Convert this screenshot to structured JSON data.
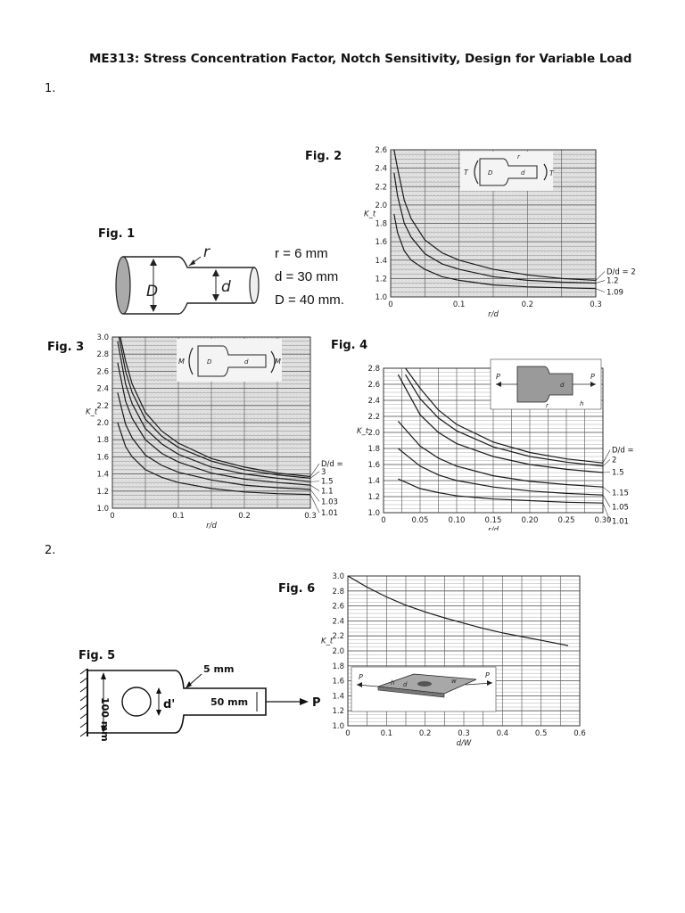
{
  "title": "ME313: Stress Concentration Factor, Notch Sensitivity, Design for Variable Load",
  "questions": [
    "1.",
    "2."
  ],
  "figures": {
    "fig1": {
      "label": "Fig. 1",
      "params": [
        "r = 6 mm",
        "d = 30 mm",
        "D = 40 mm."
      ],
      "sketch_labels": {
        "r": "r",
        "D": "D",
        "d": "d"
      }
    },
    "fig2": {
      "label": "Fig. 2",
      "insert_labels": {
        "T": "T",
        "r": "r",
        "D": "D",
        "d": "d"
      }
    },
    "fig3": {
      "label": "Fig. 3",
      "insert_labels": {
        "M": "M",
        "D": "D",
        "d": "d"
      }
    },
    "fig4": {
      "label": "Fig. 4",
      "insert_labels": {
        "P": "P",
        "d": "d",
        "h": "h",
        "r": "r"
      }
    },
    "fig5": {
      "label": "Fig. 5",
      "labels": {
        "width": "100 mm",
        "notch": "5 mm",
        "hole": "d'",
        "narrow": "50 mm",
        "load": "P"
      }
    },
    "fig6": {
      "label": "Fig. 6",
      "insert_labels": {
        "P": "P",
        "d": "d",
        "h": "h",
        "w": "w"
      }
    }
  },
  "chart_data": [
    {
      "id": "fig2",
      "type": "line",
      "xlabel": "r/d",
      "ylabel": "K_t",
      "xlim": [
        0,
        0.3
      ],
      "ylim": [
        1.0,
        2.6
      ],
      "xticks": [
        0,
        0.1,
        0.2,
        0.3
      ],
      "xtick_labels": [
        "0",
        "0.1",
        "0.2",
        "0.3"
      ],
      "yticks": [
        1.0,
        1.2,
        1.4,
        1.6,
        1.8,
        2.0,
        2.2,
        2.4,
        2.6
      ],
      "ytick_labels": [
        "1.0",
        "1.2",
        "1.4",
        "1.6",
        "1.8",
        "2.0",
        "2.2",
        "2.4",
        "2.6"
      ],
      "grid": true,
      "series": [
        {
          "name": "D/d = 2",
          "x": [
            0.005,
            0.01,
            0.02,
            0.03,
            0.05,
            0.075,
            0.1,
            0.15,
            0.2,
            0.25,
            0.3
          ],
          "y": [
            2.65,
            2.4,
            2.05,
            1.85,
            1.62,
            1.48,
            1.4,
            1.3,
            1.24,
            1.2,
            1.18
          ]
        },
        {
          "name": "1.2",
          "x": [
            0.005,
            0.01,
            0.02,
            0.03,
            0.05,
            0.075,
            0.1,
            0.15,
            0.2,
            0.25,
            0.3
          ],
          "y": [
            2.35,
            2.1,
            1.8,
            1.65,
            1.47,
            1.36,
            1.3,
            1.22,
            1.18,
            1.16,
            1.15
          ]
        },
        {
          "name": "1.09",
          "x": [
            0.005,
            0.01,
            0.02,
            0.03,
            0.05,
            0.075,
            0.1,
            0.15,
            0.2,
            0.25,
            0.3
          ],
          "y": [
            1.9,
            1.7,
            1.5,
            1.4,
            1.3,
            1.22,
            1.18,
            1.13,
            1.11,
            1.1,
            1.09
          ]
        }
      ]
    },
    {
      "id": "fig3",
      "type": "line",
      "xlabel": "r/d",
      "ylabel": "K_t",
      "xlim": [
        0,
        0.3
      ],
      "ylim": [
        1.0,
        3.0
      ],
      "xticks": [
        0,
        0.1,
        0.2,
        0.3
      ],
      "xtick_labels": [
        "0",
        "0.1",
        "0.2",
        "0.3"
      ],
      "yticks": [
        1.0,
        1.2,
        1.4,
        1.6,
        1.8,
        2.0,
        2.2,
        2.4,
        2.6,
        2.8,
        3.0
      ],
      "ytick_labels": [
        "1.0",
        "1.2",
        "1.4",
        "1.6",
        "1.8",
        "2.0",
        "2.2",
        "2.4",
        "2.6",
        "2.8",
        "3.0"
      ],
      "grid": true,
      "series": [
        {
          "name": "D/d = 6",
          "x": [
            0.012,
            0.02,
            0.03,
            0.05,
            0.075,
            0.1,
            0.15,
            0.2,
            0.25,
            0.3
          ],
          "y": [
            3.0,
            2.72,
            2.45,
            2.12,
            1.9,
            1.76,
            1.58,
            1.48,
            1.41,
            1.37
          ]
        },
        {
          "name": "3",
          "x": [
            0.01,
            0.02,
            0.03,
            0.05,
            0.075,
            0.1,
            0.15,
            0.2,
            0.25,
            0.3
          ],
          "y": [
            3.0,
            2.6,
            2.35,
            2.04,
            1.84,
            1.71,
            1.55,
            1.45,
            1.39,
            1.35
          ]
        },
        {
          "name": "1.5",
          "x": [
            0.008,
            0.02,
            0.03,
            0.05,
            0.075,
            0.1,
            0.15,
            0.2,
            0.25,
            0.3
          ],
          "y": [
            2.95,
            2.45,
            2.22,
            1.93,
            1.75,
            1.63,
            1.48,
            1.4,
            1.35,
            1.31
          ]
        },
        {
          "name": "1.1",
          "x": [
            0.008,
            0.02,
            0.03,
            0.05,
            0.075,
            0.1,
            0.15,
            0.2,
            0.25,
            0.3
          ],
          "y": [
            2.7,
            2.25,
            2.05,
            1.8,
            1.64,
            1.54,
            1.41,
            1.34,
            1.3,
            1.27
          ]
        },
        {
          "name": "1.03",
          "x": [
            0.008,
            0.02,
            0.03,
            0.05,
            0.075,
            0.1,
            0.15,
            0.2,
            0.25,
            0.3
          ],
          "y": [
            2.35,
            1.98,
            1.82,
            1.62,
            1.5,
            1.42,
            1.33,
            1.27,
            1.24,
            1.22
          ]
        },
        {
          "name": "1.01",
          "x": [
            0.008,
            0.02,
            0.03,
            0.05,
            0.075,
            0.1,
            0.15,
            0.2,
            0.25,
            0.3
          ],
          "y": [
            2.0,
            1.72,
            1.6,
            1.45,
            1.36,
            1.3,
            1.23,
            1.19,
            1.17,
            1.16
          ]
        }
      ]
    },
    {
      "id": "fig4",
      "type": "line",
      "xlabel": "r/d",
      "ylabel": "K_t",
      "xlim": [
        0,
        0.3
      ],
      "ylim": [
        1.0,
        2.8
      ],
      "xticks": [
        0,
        0.05,
        0.1,
        0.15,
        0.2,
        0.25,
        0.3
      ],
      "xtick_labels": [
        "0",
        "0.05",
        "0.10",
        "0.15",
        "0.20",
        "0.25",
        "0.30"
      ],
      "yticks": [
        1.0,
        1.2,
        1.4,
        1.6,
        1.8,
        2.0,
        2.2,
        2.4,
        2.6,
        2.8
      ],
      "ytick_labels": [
        "1.0",
        "1.2",
        "1.4",
        "1.6",
        "1.8",
        "2.0",
        "2.2",
        "2.4",
        "2.6",
        "2.8"
      ],
      "grid": true,
      "series": [
        {
          "name": "D/d = 3",
          "x": [
            0.03,
            0.05,
            0.075,
            0.1,
            0.15,
            0.2,
            0.25,
            0.3
          ],
          "y": [
            2.92,
            2.55,
            2.28,
            2.1,
            1.88,
            1.75,
            1.67,
            1.62
          ]
        },
        {
          "name": "2",
          "x": [
            0.03,
            0.05,
            0.075,
            0.1,
            0.15,
            0.2,
            0.25,
            0.3
          ],
          "y": [
            2.72,
            2.42,
            2.18,
            2.02,
            1.82,
            1.7,
            1.63,
            1.58
          ]
        },
        {
          "name": "1.5",
          "x": [
            0.02,
            0.05,
            0.075,
            0.1,
            0.15,
            0.2,
            0.25,
            0.3
          ],
          "y": [
            2.72,
            2.22,
            2.0,
            1.86,
            1.7,
            1.6,
            1.54,
            1.5
          ]
        },
        {
          "name": "1.15",
          "x": [
            0.02,
            0.05,
            0.075,
            0.1,
            0.15,
            0.2,
            0.25,
            0.3
          ],
          "y": [
            2.14,
            1.83,
            1.68,
            1.58,
            1.46,
            1.39,
            1.35,
            1.32
          ]
        },
        {
          "name": "1.05",
          "x": [
            0.02,
            0.05,
            0.075,
            0.1,
            0.15,
            0.2,
            0.25,
            0.3
          ],
          "y": [
            1.8,
            1.58,
            1.47,
            1.4,
            1.32,
            1.27,
            1.24,
            1.22
          ]
        },
        {
          "name": "1.01",
          "x": [
            0.02,
            0.05,
            0.075,
            0.1,
            0.15,
            0.2,
            0.25,
            0.3
          ],
          "y": [
            1.42,
            1.3,
            1.25,
            1.21,
            1.17,
            1.15,
            1.13,
            1.12
          ]
        }
      ]
    },
    {
      "id": "fig6",
      "type": "line",
      "xlabel": "d/W",
      "ylabel": "K_t",
      "xlim": [
        0,
        0.6
      ],
      "ylim": [
        1.0,
        3.0
      ],
      "xticks": [
        0,
        0.1,
        0.2,
        0.3,
        0.4,
        0.5,
        0.6
      ],
      "xtick_labels": [
        "0",
        "0.1",
        "0.2",
        "0.3",
        "0.4",
        "0.5",
        "0.6"
      ],
      "yticks": [
        1.0,
        1.2,
        1.4,
        1.6,
        1.8,
        2.0,
        2.2,
        2.4,
        2.6,
        2.8,
        3.0
      ],
      "ytick_labels": [
        "1.0",
        "1.2",
        "1.4",
        "1.6",
        "1.8",
        "2.0",
        "2.2",
        "2.4",
        "2.6",
        "2.8",
        "3.0"
      ],
      "grid": true,
      "series": [
        {
          "name": "",
          "x": [
            0,
            0.05,
            0.1,
            0.15,
            0.2,
            0.25,
            0.3,
            0.35,
            0.4,
            0.45,
            0.5,
            0.57
          ],
          "y": [
            3.0,
            2.85,
            2.72,
            2.61,
            2.52,
            2.44,
            2.37,
            2.3,
            2.24,
            2.19,
            2.14,
            2.07
          ]
        }
      ]
    }
  ]
}
